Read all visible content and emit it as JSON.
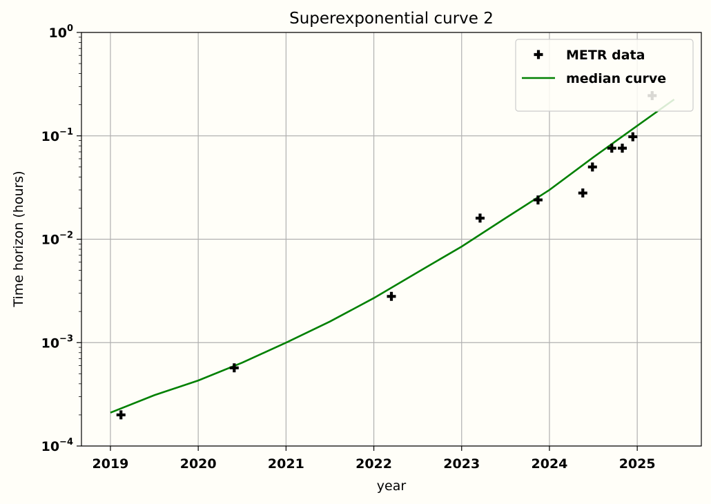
{
  "chart_data": {
    "type": "scatter",
    "title": "Superexponential curve 2",
    "xlabel": "year",
    "ylabel": "Time horizon (hours)",
    "yscale": "log",
    "xlim": [
      2018.67,
      2025.73
    ],
    "ylim": [
      0.0001,
      1
    ],
    "grid": true,
    "legend_position": "top-right",
    "x_ticks": [
      {
        "value": 2019,
        "label": "2019"
      },
      {
        "value": 2020,
        "label": "2020"
      },
      {
        "value": 2021,
        "label": "2021"
      },
      {
        "value": 2022,
        "label": "2022"
      },
      {
        "value": 2023,
        "label": "2023"
      },
      {
        "value": 2024,
        "label": "2024"
      },
      {
        "value": 2025,
        "label": "2025"
      }
    ],
    "y_ticks": [
      {
        "value": 0.0001,
        "base": "10",
        "exp": "−4"
      },
      {
        "value": 0.001,
        "base": "10",
        "exp": "−3"
      },
      {
        "value": 0.01,
        "base": "10",
        "exp": "−2"
      },
      {
        "value": 0.1,
        "base": "10",
        "exp": "−1"
      },
      {
        "value": 1,
        "base": "10",
        "exp": "0"
      }
    ],
    "series": [
      {
        "name": "METR data",
        "kind": "scatter",
        "marker": "plus",
        "color": "#000000",
        "points": [
          {
            "x": 2019.12,
            "y": 0.0002
          },
          {
            "x": 2020.41,
            "y": 0.00057
          },
          {
            "x": 2022.2,
            "y": 0.0028
          },
          {
            "x": 2023.21,
            "y": 0.016
          },
          {
            "x": 2023.87,
            "y": 0.024
          },
          {
            "x": 2024.38,
            "y": 0.028
          },
          {
            "x": 2024.49,
            "y": 0.05
          },
          {
            "x": 2024.71,
            "y": 0.076
          },
          {
            "x": 2024.83,
            "y": 0.076
          },
          {
            "x": 2024.95,
            "y": 0.098
          },
          {
            "x": 2025.17,
            "y": 0.245
          }
        ]
      },
      {
        "name": "median curve",
        "kind": "line",
        "color": "#008000",
        "points": [
          {
            "x": 2019.0,
            "y": 0.00021
          },
          {
            "x": 2019.5,
            "y": 0.00031
          },
          {
            "x": 2020.0,
            "y": 0.00043
          },
          {
            "x": 2020.5,
            "y": 0.00064
          },
          {
            "x": 2021.0,
            "y": 0.001
          },
          {
            "x": 2021.5,
            "y": 0.0016
          },
          {
            "x": 2022.0,
            "y": 0.0027
          },
          {
            "x": 2022.5,
            "y": 0.0048
          },
          {
            "x": 2023.0,
            "y": 0.0085
          },
          {
            "x": 2023.5,
            "y": 0.016
          },
          {
            "x": 2024.0,
            "y": 0.03
          },
          {
            "x": 2024.5,
            "y": 0.062
          },
          {
            "x": 2025.0,
            "y": 0.125
          },
          {
            "x": 2025.42,
            "y": 0.225
          }
        ]
      }
    ]
  }
}
